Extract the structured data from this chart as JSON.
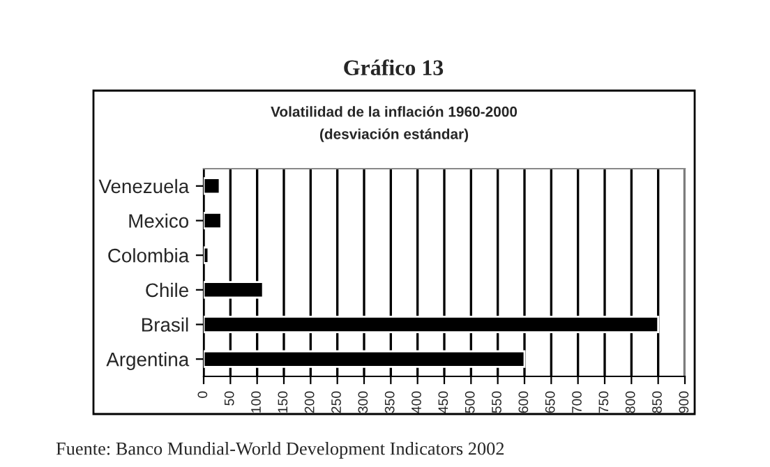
{
  "chart_data": {
    "type": "bar",
    "orientation": "horizontal",
    "title": "Volatilidad de la inflación 1960-2000",
    "subtitle": "(desviación estándar)",
    "annotations": [
      "Gráfico 13",
      "Fuente: Banco Mundial-World Development Indicators 2002"
    ],
    "categories": [
      "Venezuela",
      "Mexico",
      "Colombia",
      "Chile",
      "Brasil",
      "Argentina"
    ],
    "values": [
      30,
      33,
      9,
      111,
      850,
      600
    ],
    "color": "#000000",
    "xlim": [
      0,
      900
    ],
    "xticks": [
      0,
      50,
      100,
      150,
      200,
      250,
      300,
      350,
      400,
      450,
      500,
      550,
      600,
      650,
      700,
      750,
      800,
      850,
      900
    ],
    "grid": "x",
    "legend": false
  }
}
